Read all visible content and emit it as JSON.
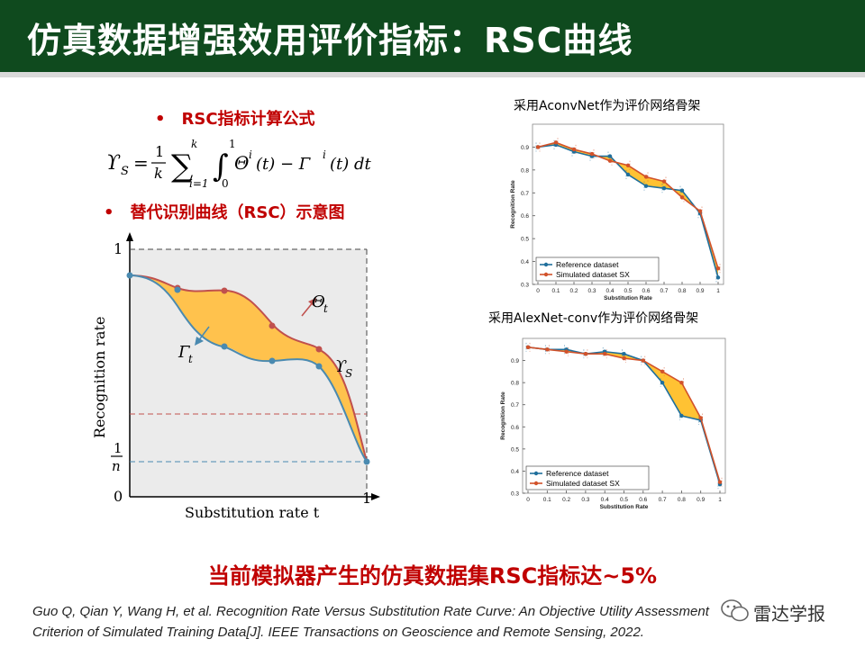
{
  "slide": {
    "title": "仿真数据增强效用评价指标：RSC曲线",
    "bullet_1": "RSC指标计算公式",
    "bullet_2": "替代识别曲线（RSC）示意图",
    "bullet_mark": "•",
    "conclusion": "当前模拟器产生的仿真数据集RSC指标达~5%",
    "reference_line_1": "Guo Q, Qian Y, Wang H, et al. Recognition Rate Versus Substitution Rate Curve: An Objective Utility Assessment",
    "reference_line_2": "Criterion of Simulated Training Data[J]. IEEE Transactions on Geoscience and Remote Sensing, 2022.",
    "watermark": "雷达学报"
  },
  "formula": {
    "lhs": "ϒ",
    "lhs_sub": "S",
    "eq": "=",
    "frac_num": "1",
    "frac_den": "k",
    "sum": "∑",
    "sum_top": "k",
    "sum_bottom": "i=1",
    "integral": "∫",
    "int_top": "1",
    "int_bottom": "0",
    "body": "Θ",
    "body_sup": "i",
    "arg1": "(t) − Γ",
    "body2_sup": "i",
    "arg2": "(t) dt"
  },
  "main_chart": {
    "xlabel": "Substitution rate t",
    "ylabel": "Recognition rate",
    "y_top": "1",
    "y_frac_num": "1",
    "y_frac_den": "n",
    "origin": "0",
    "x_right": "1",
    "theta_label": "Θ",
    "theta_sub": "t",
    "gamma_label": "Γ",
    "gamma_sub": "t",
    "area_label": "ϒ",
    "area_sub": "S",
    "colors": {
      "upper": "#c0504d",
      "lower": "#4a8ab0",
      "fill": "#ffc24d",
      "bg": "#ebebeb"
    }
  },
  "chart_top_caption": "采用AconvNet作为评价网络骨架",
  "chart_bottom_caption": "采用AlexNet-conv作为评价网络骨架",
  "chart_data": [
    {
      "type": "line",
      "x": [
        0,
        0.1,
        0.2,
        0.3,
        0.4,
        0.5,
        0.6,
        0.7,
        0.8,
        0.9,
        1
      ],
      "xticklabels": [
        "0",
        "0.1",
        "0.2",
        "0.3",
        "0.4",
        "0.5",
        "0.6",
        "0.7",
        "0.8",
        "0.9",
        "1"
      ],
      "yticks": [
        0.3,
        0.4,
        0.5,
        0.6,
        0.7,
        0.8,
        0.9
      ],
      "xlabel": "Substitution Rate",
      "ylabel": "Recognition Rate",
      "ylim": [
        0.3,
        1.0
      ],
      "legend": "bottom-left",
      "series": [
        {
          "name": "Reference dataset",
          "color": "#1f6f9c",
          "values": [
            0.9,
            0.91,
            0.88,
            0.86,
            0.86,
            0.78,
            0.73,
            0.72,
            0.71,
            0.61,
            0.33
          ]
        },
        {
          "name": "Simulated dataset SX",
          "color": "#d2522a",
          "values": [
            0.9,
            0.92,
            0.89,
            0.87,
            0.84,
            0.82,
            0.77,
            0.75,
            0.68,
            0.62,
            0.37
          ]
        }
      ]
    },
    {
      "type": "line",
      "x": [
        0,
        0.1,
        0.2,
        0.3,
        0.4,
        0.5,
        0.6,
        0.7,
        0.8,
        0.9,
        1
      ],
      "xticklabels": [
        "0",
        "0.1",
        "0.2",
        "0.3",
        "0.4",
        "0.5",
        "0.6",
        "0.7",
        "0.8",
        "0.9",
        "1"
      ],
      "yticks": [
        0.3,
        0.4,
        0.5,
        0.6,
        0.7,
        0.8,
        0.9
      ],
      "xlabel": "Substitution Rate",
      "ylabel": "Recognition Rate",
      "ylim": [
        0.3,
        1.0
      ],
      "legend": "bottom-left",
      "series": [
        {
          "name": "Reference dataset",
          "color": "#1f6f9c",
          "values": [
            0.96,
            0.95,
            0.95,
            0.93,
            0.94,
            0.93,
            0.9,
            0.8,
            0.65,
            0.63,
            0.34
          ]
        },
        {
          "name": "Simulated dataset SX",
          "color": "#d2522a",
          "values": [
            0.96,
            0.95,
            0.94,
            0.93,
            0.93,
            0.91,
            0.9,
            0.85,
            0.8,
            0.64,
            0.35
          ]
        }
      ]
    }
  ]
}
